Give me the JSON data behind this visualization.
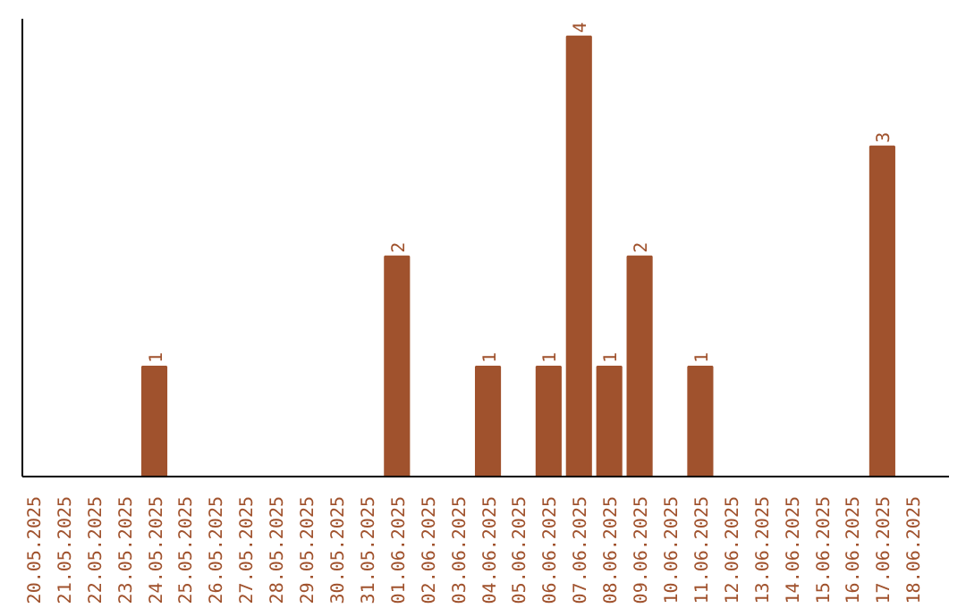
{
  "chart_data": {
    "type": "bar",
    "categories": [
      "20.05.2025",
      "21.05.2025",
      "22.05.2025",
      "23.05.2025",
      "24.05.2025",
      "25.05.2025",
      "26.05.2025",
      "27.05.2025",
      "28.05.2025",
      "29.05.2025",
      "30.05.2025",
      "31.05.2025",
      "01.06.2025",
      "02.06.2025",
      "03.06.2025",
      "04.06.2025",
      "05.06.2025",
      "06.06.2025",
      "07.06.2025",
      "08.06.2025",
      "09.06.2025",
      "10.06.2025",
      "11.06.2025",
      "12.06.2025",
      "13.06.2025",
      "14.06.2025",
      "15.06.2025",
      "16.06.2025",
      "17.06.2025",
      "18.06.2025"
    ],
    "values": [
      0,
      0,
      0,
      0,
      1,
      0,
      0,
      0,
      0,
      0,
      0,
      0,
      2,
      0,
      0,
      1,
      0,
      1,
      4,
      1,
      2,
      0,
      1,
      0,
      0,
      0,
      0,
      0,
      3,
      0
    ],
    "value_labels": [
      null,
      null,
      null,
      null,
      "1",
      null,
      null,
      null,
      null,
      null,
      null,
      null,
      "2",
      null,
      null,
      "1",
      null,
      "1",
      "4",
      "1",
      "2",
      null,
      "1",
      null,
      null,
      null,
      null,
      null,
      "3",
      null
    ],
    "color": "#a0522d",
    "grid": false,
    "tick_labels": "x"
  }
}
